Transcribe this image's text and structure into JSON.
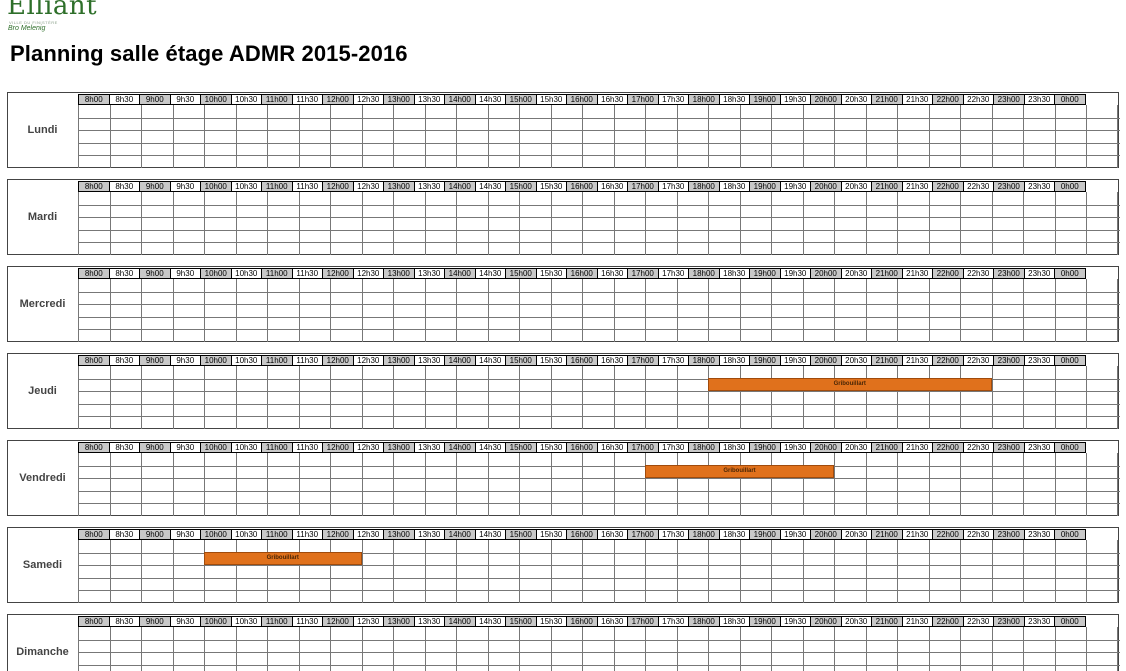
{
  "logo": {
    "name": "Elliant",
    "tagline": "VILLE DU FINISTÈRE",
    "sub": "Bro Melenig"
  },
  "title": "Planning salle étage ADMR 2015-2016",
  "time_slots": [
    "8h00",
    "8h30",
    "9h00",
    "9h30",
    "10h00",
    "10h30",
    "11h00",
    "11h30",
    "12h00",
    "12h30",
    "13h00",
    "13h30",
    "14h00",
    "14h30",
    "15h00",
    "15h30",
    "16h00",
    "16h30",
    "17h00",
    "17h30",
    "18h00",
    "18h30",
    "19h00",
    "19h30",
    "20h00",
    "20h30",
    "21h00",
    "21h30",
    "22h00",
    "22h30",
    "23h00",
    "23h30",
    "0h00"
  ],
  "days": [
    {
      "label": "Lundi",
      "events": []
    },
    {
      "label": "Mardi",
      "events": []
    },
    {
      "label": "Mercredi",
      "events": []
    },
    {
      "label": "Jeudi",
      "events": [
        {
          "label": "Gribouillart",
          "start": "18h00",
          "end": "22h30",
          "row": 1
        }
      ]
    },
    {
      "label": "Vendredi",
      "events": [
        {
          "label": "Gribouillart",
          "start": "17h00",
          "end": "20h00",
          "row": 1
        }
      ]
    },
    {
      "label": "Samedi",
      "events": [
        {
          "label": "Gribouillart",
          "start": "10h00",
          "end": "12h30",
          "row": 1
        }
      ]
    },
    {
      "label": "Dimanche",
      "events": []
    }
  ],
  "colors": {
    "event": "#e0711c",
    "logo": "#2e6f2a",
    "full_hour_header": "#c8c8c8"
  }
}
